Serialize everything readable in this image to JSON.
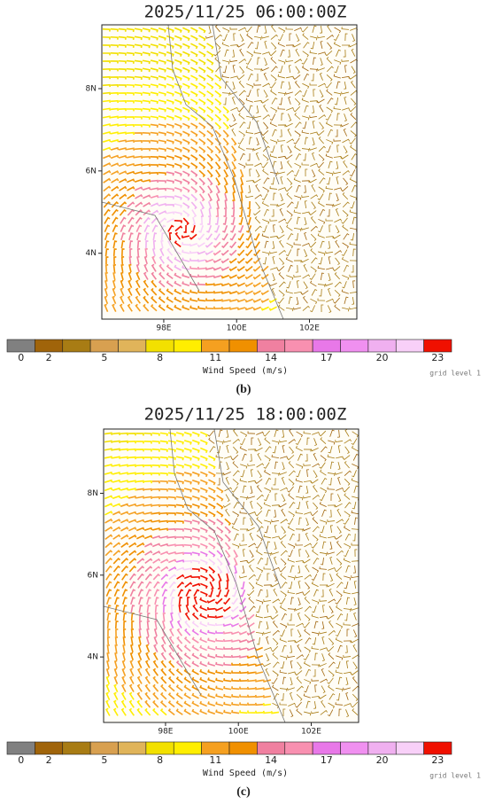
{
  "panels": [
    {
      "title": "2025/11/25 06:00:00Z",
      "map": {
        "xlim": [
          96.3,
          103.3
        ],
        "ylim": [
          2.4,
          9.55
        ],
        "xticks": [
          {
            "value": 98,
            "label": "98E"
          },
          {
            "value": 100,
            "label": "100E"
          },
          {
            "value": 102,
            "label": "102E"
          }
        ],
        "yticks": [
          {
            "value": 4,
            "label": "4N"
          },
          {
            "value": 6,
            "label": "6N"
          },
          {
            "value": 8,
            "label": "8N"
          }
        ]
      },
      "colorbar": {
        "title": "Wind Speed (m/s)",
        "colors": [
          "#808080",
          "#a0640a",
          "#a87c14",
          "#d8a050",
          "#e0b45a",
          "#f2e000",
          "#ffee00",
          "#f5a020",
          "#f09000",
          "#f080a0",
          "#f890b0",
          "#e878e8",
          "#f090f0",
          "#f0b0f0",
          "#f8d0f8",
          "#f01000"
        ],
        "labels": [
          0,
          2,
          null,
          5,
          null,
          8,
          null,
          11,
          null,
          14,
          null,
          17,
          null,
          20,
          null,
          23
        ]
      },
      "note": "grid level 1",
      "caption": "(b)"
    },
    {
      "title": "2025/11/25 18:00:00Z",
      "map": {
        "xlim": [
          96.3,
          103.3
        ],
        "ylim": [
          2.4,
          9.57
        ],
        "xticks": [
          {
            "value": 98,
            "label": "98E"
          },
          {
            "value": 100,
            "label": "100E"
          },
          {
            "value": 102,
            "label": "102E"
          }
        ],
        "yticks": [
          {
            "value": 4,
            "label": "4N"
          },
          {
            "value": 6,
            "label": "6N"
          },
          {
            "value": 8,
            "label": "8N"
          }
        ]
      },
      "colorbar": {
        "title": "Wind Speed (m/s)",
        "colors": [
          "#808080",
          "#a0640a",
          "#a87c14",
          "#d8a050",
          "#e0b45a",
          "#f2e000",
          "#ffee00",
          "#f5a020",
          "#f09000",
          "#f080a0",
          "#f890b0",
          "#e878e8",
          "#f090f0",
          "#f0b0f0",
          "#f8d0f8",
          "#f01000"
        ],
        "labels": [
          0,
          2,
          null,
          5,
          null,
          8,
          null,
          11,
          null,
          14,
          null,
          17,
          null,
          20,
          null,
          23
        ]
      },
      "note": "grid level 1",
      "caption": "(c)"
    }
  ]
}
